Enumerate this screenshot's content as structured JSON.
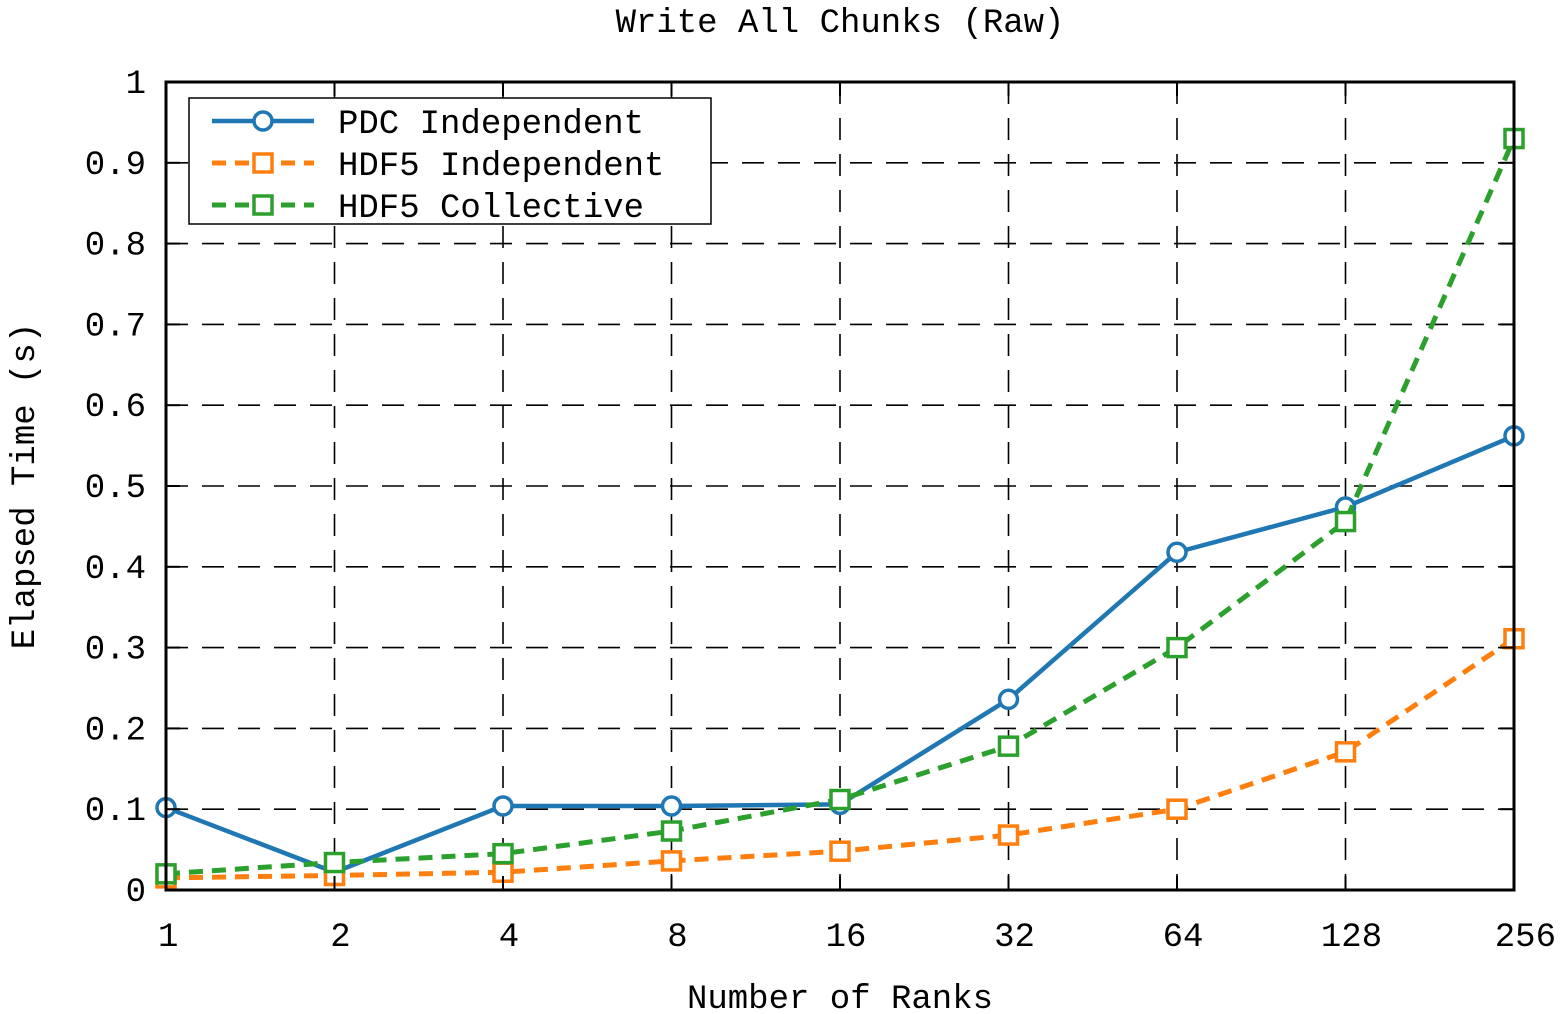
{
  "chart_data": {
    "type": "line",
    "title": "Write All Chunks (Raw)",
    "xlabel": "Number of Ranks",
    "ylabel": "Elapsed Time (s)",
    "x_scale": "log2",
    "categories": [
      "1",
      "2",
      "4",
      "8",
      "16",
      "32",
      "64",
      "128",
      "256"
    ],
    "ylim": [
      0,
      1
    ],
    "y_ticks": [
      "0",
      "0.1",
      "0.2",
      "0.3",
      "0.4",
      "0.5",
      "0.6",
      "0.7",
      "0.8",
      "0.9",
      "1"
    ],
    "grid": true,
    "legend_position": "top-left",
    "series": [
      {
        "name": "PDC Independent",
        "color": "#1f77b4",
        "line_style": "solid",
        "marker": "circle",
        "values": [
          0.102,
          0.022,
          0.104,
          0.104,
          0.106,
          0.236,
          0.418,
          0.474,
          0.562
        ]
      },
      {
        "name": "HDF5 Independent",
        "color": "#ff7f0e",
        "line_style": "dashed",
        "marker": "square",
        "values": [
          0.015,
          0.018,
          0.022,
          0.036,
          0.048,
          0.068,
          0.1,
          0.171,
          0.311
        ]
      },
      {
        "name": "HDF5 Collective",
        "color": "#2ca02c",
        "line_style": "dashed",
        "marker": "square",
        "values": [
          0.02,
          0.034,
          0.045,
          0.073,
          0.112,
          0.178,
          0.3,
          0.456,
          0.93
        ]
      }
    ]
  }
}
